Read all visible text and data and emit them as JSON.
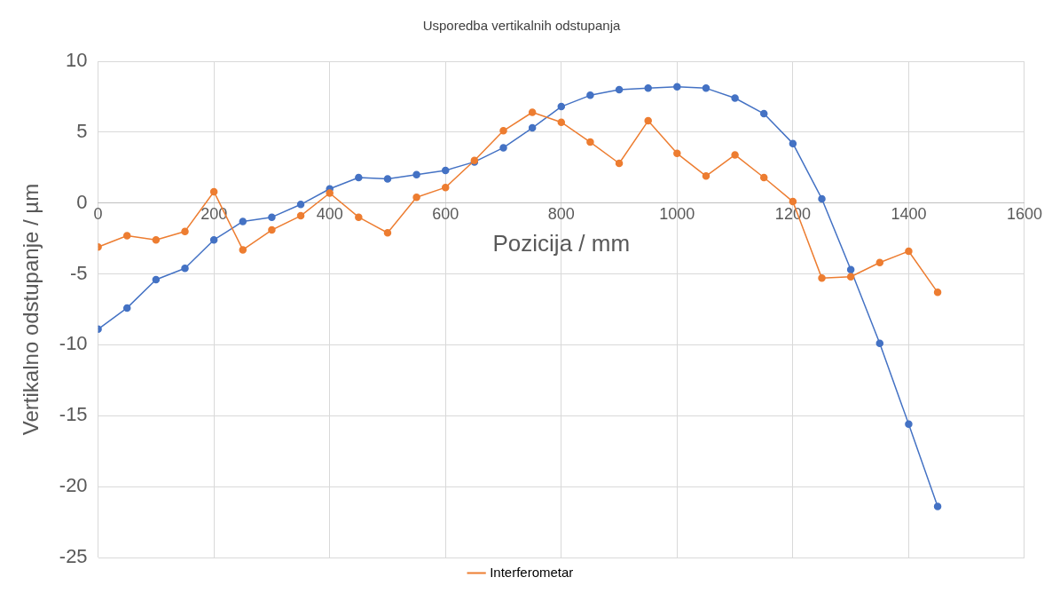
{
  "chart_data": {
    "type": "line",
    "title": "Usporedba vertikalnih odstupanja",
    "xlabel": "Pozicija / mm",
    "ylabel": "Vertikalno odstupanje / µm",
    "x": [
      0,
      50,
      100,
      150,
      200,
      250,
      300,
      350,
      400,
      450,
      500,
      550,
      600,
      650,
      700,
      750,
      800,
      850,
      900,
      950,
      1000,
      1050,
      1100,
      1150,
      1200,
      1250,
      1300,
      1350,
      1400,
      1450
    ],
    "series": [
      {
        "color": "#4472c4",
        "values": [
          -8.9,
          -7.4,
          -5.4,
          -4.6,
          -2.6,
          -1.3,
          -1.0,
          -0.1,
          1.0,
          1.8,
          1.7,
          2.0,
          2.3,
          2.9,
          3.9,
          5.3,
          6.8,
          7.6,
          8.0,
          8.1,
          8.2,
          8.1,
          7.4,
          6.3,
          4.2,
          0.3,
          -4.7,
          -9.9,
          -15.6,
          -21.4
        ]
      },
      {
        "name": "Interferometar",
        "color": "#ed7d31",
        "values": [
          -3.1,
          -2.3,
          -2.6,
          -2.0,
          0.8,
          -3.3,
          -1.9,
          -0.9,
          0.7,
          -1.0,
          -2.1,
          0.4,
          1.1,
          3.0,
          5.1,
          6.4,
          5.7,
          4.3,
          2.8,
          5.8,
          3.5,
          1.9,
          3.4,
          1.8,
          0.1,
          -5.3,
          -5.2,
          -4.2,
          -3.4,
          -6.3
        ]
      }
    ],
    "xlim": [
      0,
      1600
    ],
    "xticks": [
      0,
      200,
      400,
      600,
      800,
      1000,
      1200,
      1400,
      1600
    ],
    "ylim": [
      -25,
      10
    ],
    "yticks": [
      -25,
      -20,
      -15,
      -10,
      -5,
      0,
      5,
      10
    ],
    "grid": true,
    "legend": "bottom",
    "marker": "circle",
    "line_style": "solid"
  }
}
